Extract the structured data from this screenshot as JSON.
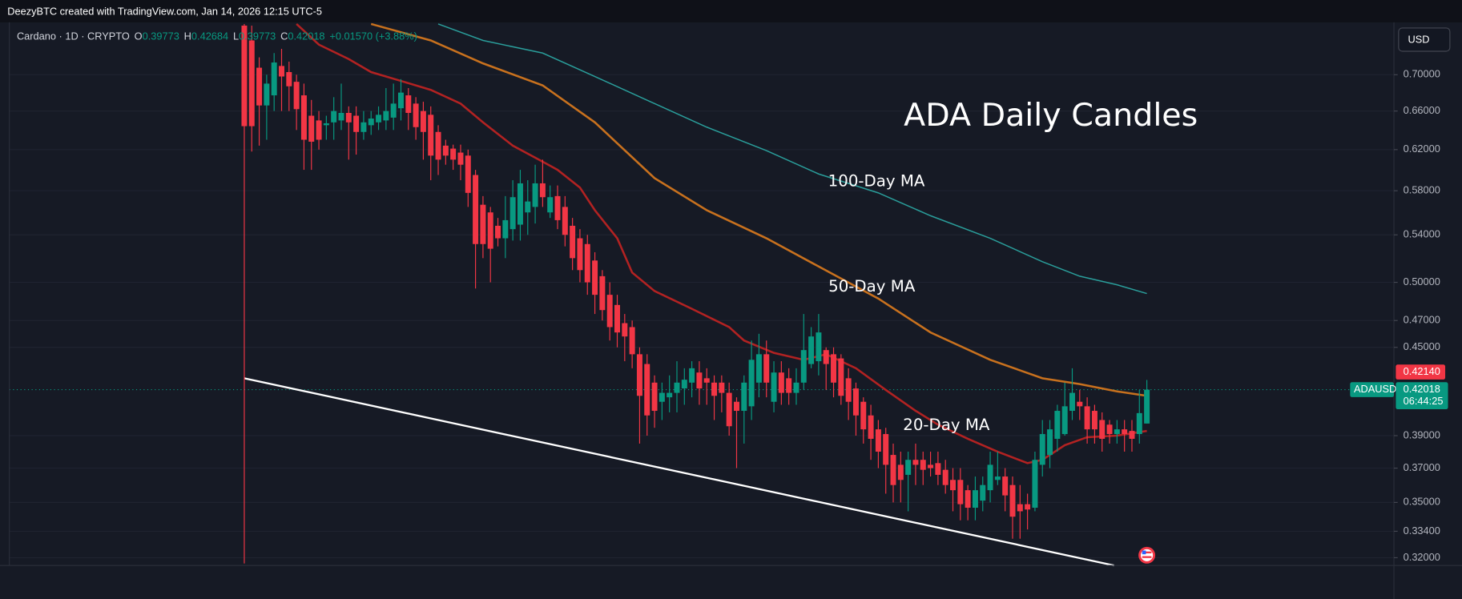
{
  "header": {
    "text": "DeezyBTC created with TradingView.com, Jan 14, 2026 12:15 UTC-5"
  },
  "chart_data": {
    "type": "candlestick",
    "title": "ADA Daily Candles",
    "symbol": "Cardano · 1D · CRYPTO",
    "ohlc_legend": [
      {
        "key": "O",
        "value": 0.39773
      },
      {
        "key": "H",
        "value": 0.42684
      },
      {
        "key": "L",
        "value": 0.39773
      },
      {
        "key": "C",
        "value": 0.42018
      }
    ],
    "change": "+0.01570 (+3.88%)",
    "currency": "USD",
    "ticker": "ADAUSD",
    "log_scale": true,
    "grid": true,
    "up_color": "#089981",
    "down_color": "#f23645",
    "ylim": [
      0.316,
      0.762
    ],
    "yticks": [
      {
        "value": 0.7,
        "label": "0.70000"
      },
      {
        "value": 0.66,
        "label": "0.66000"
      },
      {
        "value": 0.62,
        "label": "0.62000"
      },
      {
        "value": 0.58,
        "label": "0.58000"
      },
      {
        "value": 0.54,
        "label": "0.54000"
      },
      {
        "value": 0.5,
        "label": "0.50000"
      },
      {
        "value": 0.47,
        "label": "0.47000"
      },
      {
        "value": 0.45,
        "label": "0.45000"
      },
      {
        "value": 0.39,
        "label": "0.39000"
      },
      {
        "value": 0.37,
        "label": "0.37000"
      },
      {
        "value": 0.35,
        "label": "0.35000"
      },
      {
        "value": 0.334,
        "label": "0.33400"
      },
      {
        "value": 0.32,
        "label": "0.32000"
      }
    ],
    "price_tags": [
      {
        "value": 0.4214,
        "label": "0.42140",
        "color": "#f23645"
      },
      {
        "value": 0.42018,
        "color": "#089981",
        "countdown": "06:44:25"
      }
    ],
    "candles": [
      {
        "open": 0.758,
        "high": 0.76,
        "low": 0.317,
        "close": 0.644
      },
      {
        "open": 0.74,
        "high": 0.758,
        "low": 0.618,
        "close": 0.644
      },
      {
        "open": 0.708,
        "high": 0.72,
        "low": 0.624,
        "close": 0.666
      },
      {
        "open": 0.666,
        "high": 0.7,
        "low": 0.63,
        "close": 0.69
      },
      {
        "open": 0.677,
        "high": 0.725,
        "low": 0.66,
        "close": 0.714
      },
      {
        "open": 0.71,
        "high": 0.73,
        "low": 0.66,
        "close": 0.698
      },
      {
        "open": 0.703,
        "high": 0.715,
        "low": 0.66,
        "close": 0.687
      },
      {
        "open": 0.692,
        "high": 0.7,
        "low": 0.64,
        "close": 0.662
      },
      {
        "open": 0.677,
        "high": 0.69,
        "low": 0.6,
        "close": 0.63
      },
      {
        "open": 0.655,
        "high": 0.672,
        "low": 0.6,
        "close": 0.628
      },
      {
        "open": 0.65,
        "high": 0.66,
        "low": 0.62,
        "close": 0.63
      },
      {
        "open": 0.645,
        "high": 0.655,
        "low": 0.63,
        "close": 0.647
      },
      {
        "open": 0.648,
        "high": 0.675,
        "low": 0.63,
        "close": 0.66
      },
      {
        "open": 0.65,
        "high": 0.69,
        "low": 0.64,
        "close": 0.658
      },
      {
        "open": 0.658,
        "high": 0.665,
        "low": 0.61,
        "close": 0.648
      },
      {
        "open": 0.655,
        "high": 0.665,
        "low": 0.615,
        "close": 0.638
      },
      {
        "open": 0.638,
        "high": 0.66,
        "low": 0.63,
        "close": 0.648
      },
      {
        "open": 0.645,
        "high": 0.66,
        "low": 0.635,
        "close": 0.652
      },
      {
        "open": 0.648,
        "high": 0.665,
        "low": 0.64,
        "close": 0.656
      },
      {
        "open": 0.65,
        "high": 0.685,
        "low": 0.64,
        "close": 0.66
      },
      {
        "open": 0.653,
        "high": 0.69,
        "low": 0.64,
        "close": 0.668
      },
      {
        "open": 0.663,
        "high": 0.695,
        "low": 0.65,
        "close": 0.68
      },
      {
        "open": 0.677,
        "high": 0.685,
        "low": 0.64,
        "close": 0.658
      },
      {
        "open": 0.668,
        "high": 0.675,
        "low": 0.63,
        "close": 0.643
      },
      {
        "open": 0.66,
        "high": 0.67,
        "low": 0.61,
        "close": 0.638
      },
      {
        "open": 0.656,
        "high": 0.665,
        "low": 0.59,
        "close": 0.614
      },
      {
        "open": 0.638,
        "high": 0.645,
        "low": 0.595,
        "close": 0.61
      },
      {
        "open": 0.624,
        "high": 0.63,
        "low": 0.605,
        "close": 0.614
      },
      {
        "open": 0.621,
        "high": 0.625,
        "low": 0.6,
        "close": 0.61
      },
      {
        "open": 0.617,
        "high": 0.625,
        "low": 0.59,
        "close": 0.605
      },
      {
        "open": 0.614,
        "high": 0.62,
        "low": 0.565,
        "close": 0.578
      },
      {
        "open": 0.595,
        "high": 0.6,
        "low": 0.495,
        "close": 0.532
      },
      {
        "open": 0.567,
        "high": 0.575,
        "low": 0.52,
        "close": 0.532
      },
      {
        "open": 0.56,
        "high": 0.565,
        "low": 0.5,
        "close": 0.528
      },
      {
        "open": 0.548,
        "high": 0.555,
        "low": 0.53,
        "close": 0.537
      },
      {
        "open": 0.537,
        "high": 0.575,
        "low": 0.52,
        "close": 0.553
      },
      {
        "open": 0.545,
        "high": 0.59,
        "low": 0.535,
        "close": 0.574
      },
      {
        "open": 0.549,
        "high": 0.6,
        "low": 0.535,
        "close": 0.587
      },
      {
        "open": 0.56,
        "high": 0.59,
        "low": 0.54,
        "close": 0.57
      },
      {
        "open": 0.565,
        "high": 0.605,
        "low": 0.55,
        "close": 0.587
      },
      {
        "open": 0.587,
        "high": 0.61,
        "low": 0.565,
        "close": 0.574
      },
      {
        "open": 0.56,
        "high": 0.585,
        "low": 0.555,
        "close": 0.574
      },
      {
        "open": 0.575,
        "high": 0.585,
        "low": 0.545,
        "close": 0.553
      },
      {
        "open": 0.565,
        "high": 0.575,
        "low": 0.53,
        "close": 0.54
      },
      {
        "open": 0.548,
        "high": 0.555,
        "low": 0.51,
        "close": 0.52
      },
      {
        "open": 0.537,
        "high": 0.545,
        "low": 0.5,
        "close": 0.51
      },
      {
        "open": 0.532,
        "high": 0.54,
        "low": 0.49,
        "close": 0.5
      },
      {
        "open": 0.518,
        "high": 0.525,
        "low": 0.475,
        "close": 0.49
      },
      {
        "open": 0.505,
        "high": 0.51,
        "low": 0.47,
        "close": 0.478
      },
      {
        "open": 0.49,
        "high": 0.5,
        "low": 0.455,
        "close": 0.465
      },
      {
        "open": 0.482,
        "high": 0.49,
        "low": 0.45,
        "close": 0.461
      },
      {
        "open": 0.468,
        "high": 0.475,
        "low": 0.44,
        "close": 0.458
      },
      {
        "open": 0.465,
        "high": 0.47,
        "low": 0.435,
        "close": 0.445
      },
      {
        "open": 0.445,
        "high": 0.45,
        "low": 0.385,
        "close": 0.416
      },
      {
        "open": 0.438,
        "high": 0.445,
        "low": 0.39,
        "close": 0.403
      },
      {
        "open": 0.425,
        "high": 0.43,
        "low": 0.395,
        "close": 0.406
      },
      {
        "open": 0.412,
        "high": 0.425,
        "low": 0.4,
        "close": 0.418
      },
      {
        "open": 0.415,
        "high": 0.43,
        "low": 0.405,
        "close": 0.418
      },
      {
        "open": 0.418,
        "high": 0.44,
        "low": 0.405,
        "close": 0.425
      },
      {
        "open": 0.421,
        "high": 0.435,
        "low": 0.41,
        "close": 0.427
      },
      {
        "open": 0.425,
        "high": 0.44,
        "low": 0.415,
        "close": 0.435
      },
      {
        "open": 0.432,
        "high": 0.44,
        "low": 0.41,
        "close": 0.421
      },
      {
        "open": 0.428,
        "high": 0.435,
        "low": 0.41,
        "close": 0.425
      },
      {
        "open": 0.425,
        "high": 0.43,
        "low": 0.4,
        "close": 0.416
      },
      {
        "open": 0.425,
        "high": 0.43,
        "low": 0.405,
        "close": 0.418
      },
      {
        "open": 0.418,
        "high": 0.425,
        "low": 0.39,
        "close": 0.396
      },
      {
        "open": 0.412,
        "high": 0.415,
        "low": 0.37,
        "close": 0.406
      },
      {
        "open": 0.406,
        "high": 0.43,
        "low": 0.385,
        "close": 0.425
      },
      {
        "open": 0.409,
        "high": 0.455,
        "low": 0.4,
        "close": 0.441
      },
      {
        "open": 0.425,
        "high": 0.46,
        "low": 0.415,
        "close": 0.445
      },
      {
        "open": 0.445,
        "high": 0.455,
        "low": 0.415,
        "close": 0.425
      },
      {
        "open": 0.412,
        "high": 0.44,
        "low": 0.405,
        "close": 0.432
      },
      {
        "open": 0.432,
        "high": 0.44,
        "low": 0.41,
        "close": 0.418
      },
      {
        "open": 0.428,
        "high": 0.435,
        "low": 0.41,
        "close": 0.418
      },
      {
        "open": 0.418,
        "high": 0.435,
        "low": 0.41,
        "close": 0.425
      },
      {
        "open": 0.425,
        "high": 0.475,
        "low": 0.42,
        "close": 0.448
      },
      {
        "open": 0.438,
        "high": 0.465,
        "low": 0.435,
        "close": 0.458
      },
      {
        "open": 0.44,
        "high": 0.475,
        "low": 0.43,
        "close": 0.461
      },
      {
        "open": 0.448,
        "high": 0.45,
        "low": 0.42,
        "close": 0.438
      },
      {
        "open": 0.445,
        "high": 0.45,
        "low": 0.415,
        "close": 0.425
      },
      {
        "open": 0.442,
        "high": 0.445,
        "low": 0.41,
        "close": 0.416
      },
      {
        "open": 0.428,
        "high": 0.435,
        "low": 0.4,
        "close": 0.412
      },
      {
        "open": 0.421,
        "high": 0.425,
        "low": 0.39,
        "close": 0.403
      },
      {
        "open": 0.412,
        "high": 0.415,
        "low": 0.385,
        "close": 0.394
      },
      {
        "open": 0.403,
        "high": 0.41,
        "low": 0.375,
        "close": 0.388
      },
      {
        "open": 0.394,
        "high": 0.4,
        "low": 0.37,
        "close": 0.38
      },
      {
        "open": 0.391,
        "high": 0.395,
        "low": 0.355,
        "close": 0.372
      },
      {
        "open": 0.378,
        "high": 0.385,
        "low": 0.35,
        "close": 0.36
      },
      {
        "open": 0.372,
        "high": 0.38,
        "low": 0.35,
        "close": 0.363
      },
      {
        "open": 0.366,
        "high": 0.38,
        "low": 0.345,
        "close": 0.375
      },
      {
        "open": 0.375,
        "high": 0.385,
        "low": 0.36,
        "close": 0.372
      },
      {
        "open": 0.375,
        "high": 0.38,
        "low": 0.36,
        "close": 0.369
      },
      {
        "open": 0.372,
        "high": 0.38,
        "low": 0.365,
        "close": 0.37
      },
      {
        "open": 0.373,
        "high": 0.38,
        "low": 0.36,
        "close": 0.366
      },
      {
        "open": 0.369,
        "high": 0.375,
        "low": 0.355,
        "close": 0.36
      },
      {
        "open": 0.363,
        "high": 0.37,
        "low": 0.345,
        "close": 0.357
      },
      {
        "open": 0.363,
        "high": 0.37,
        "low": 0.34,
        "close": 0.349
      },
      {
        "open": 0.357,
        "high": 0.36,
        "low": 0.34,
        "close": 0.347
      },
      {
        "open": 0.347,
        "high": 0.365,
        "low": 0.34,
        "close": 0.357
      },
      {
        "open": 0.351,
        "high": 0.365,
        "low": 0.345,
        "close": 0.36
      },
      {
        "open": 0.357,
        "high": 0.38,
        "low": 0.35,
        "close": 0.372
      },
      {
        "open": 0.363,
        "high": 0.38,
        "low": 0.36,
        "close": 0.365
      },
      {
        "open": 0.365,
        "high": 0.37,
        "low": 0.345,
        "close": 0.354
      },
      {
        "open": 0.36,
        "high": 0.365,
        "low": 0.33,
        "close": 0.342
      },
      {
        "open": 0.349,
        "high": 0.36,
        "low": 0.33,
        "close": 0.345
      },
      {
        "open": 0.349,
        "high": 0.355,
        "low": 0.335,
        "close": 0.346
      },
      {
        "open": 0.347,
        "high": 0.38,
        "low": 0.345,
        "close": 0.375
      },
      {
        "open": 0.372,
        "high": 0.4,
        "low": 0.365,
        "close": 0.391
      },
      {
        "open": 0.378,
        "high": 0.4,
        "low": 0.37,
        "close": 0.394
      },
      {
        "open": 0.388,
        "high": 0.41,
        "low": 0.38,
        "close": 0.406
      },
      {
        "open": 0.391,
        "high": 0.425,
        "low": 0.39,
        "close": 0.409
      },
      {
        "open": 0.406,
        "high": 0.435,
        "low": 0.4,
        "close": 0.418
      },
      {
        "open": 0.412,
        "high": 0.42,
        "low": 0.4,
        "close": 0.409
      },
      {
        "open": 0.409,
        "high": 0.415,
        "low": 0.385,
        "close": 0.394
      },
      {
        "open": 0.406,
        "high": 0.41,
        "low": 0.385,
        "close": 0.394
      },
      {
        "open": 0.4,
        "high": 0.405,
        "low": 0.38,
        "close": 0.388
      },
      {
        "open": 0.397,
        "high": 0.4,
        "low": 0.385,
        "close": 0.391
      },
      {
        "open": 0.391,
        "high": 0.4,
        "low": 0.385,
        "close": 0.394
      },
      {
        "open": 0.394,
        "high": 0.4,
        "low": 0.38,
        "close": 0.391
      },
      {
        "open": 0.393,
        "high": 0.4,
        "low": 0.38,
        "close": 0.388
      },
      {
        "open": 0.391,
        "high": 0.42,
        "low": 0.385,
        "close": 0.4045
      },
      {
        "open": 0.39773,
        "high": 0.42684,
        "low": 0.39773,
        "close": 0.42018
      }
    ],
    "series": [
      {
        "name": "20-Day MA",
        "color": "#b22222",
        "x": [
          7,
          10,
          14,
          17,
          21,
          25,
          29,
          32,
          36,
          40,
          42,
          45,
          47,
          50,
          52,
          55,
          60,
          65,
          67,
          71,
          75,
          78,
          82,
          86,
          90,
          93,
          97,
          101,
          105,
          107,
          110,
          113,
          117,
          121
        ],
        "values": [
          0.76,
          0.735,
          0.718,
          0.703,
          0.693,
          0.683,
          0.668,
          0.648,
          0.624,
          0.608,
          0.6,
          0.583,
          0.562,
          0.537,
          0.508,
          0.493,
          0.479,
          0.465,
          0.455,
          0.446,
          0.441,
          0.445,
          0.435,
          0.42,
          0.406,
          0.397,
          0.388,
          0.38,
          0.373,
          0.375,
          0.384,
          0.389,
          0.39,
          0.393
        ]
      },
      {
        "name": "50-Day MA",
        "color": "#c8711e",
        "x": [
          17,
          25,
          32,
          40,
          47,
          55,
          62,
          70,
          77,
          85,
          92,
          100,
          107,
          112,
          117,
          121
        ],
        "values": [
          0.76,
          0.74,
          0.713,
          0.688,
          0.648,
          0.592,
          0.562,
          0.537,
          0.513,
          0.487,
          0.461,
          0.441,
          0.428,
          0.424,
          0.419,
          0.416
        ]
      },
      {
        "name": "100-Day MA",
        "color": "#2a9d9a",
        "x": [
          26,
          32,
          40,
          47,
          55,
          62,
          70,
          77,
          85,
          92,
          100,
          107,
          112,
          117,
          121
        ],
        "values": [
          0.76,
          0.74,
          0.725,
          0.698,
          0.668,
          0.643,
          0.619,
          0.596,
          0.578,
          0.557,
          0.537,
          0.517,
          0.505,
          0.498,
          0.491
        ]
      }
    ],
    "trendline": {
      "color": "#ffffff",
      "x": [
        0,
        116.6
      ],
      "values": [
        0.428,
        0.316
      ]
    }
  }
}
